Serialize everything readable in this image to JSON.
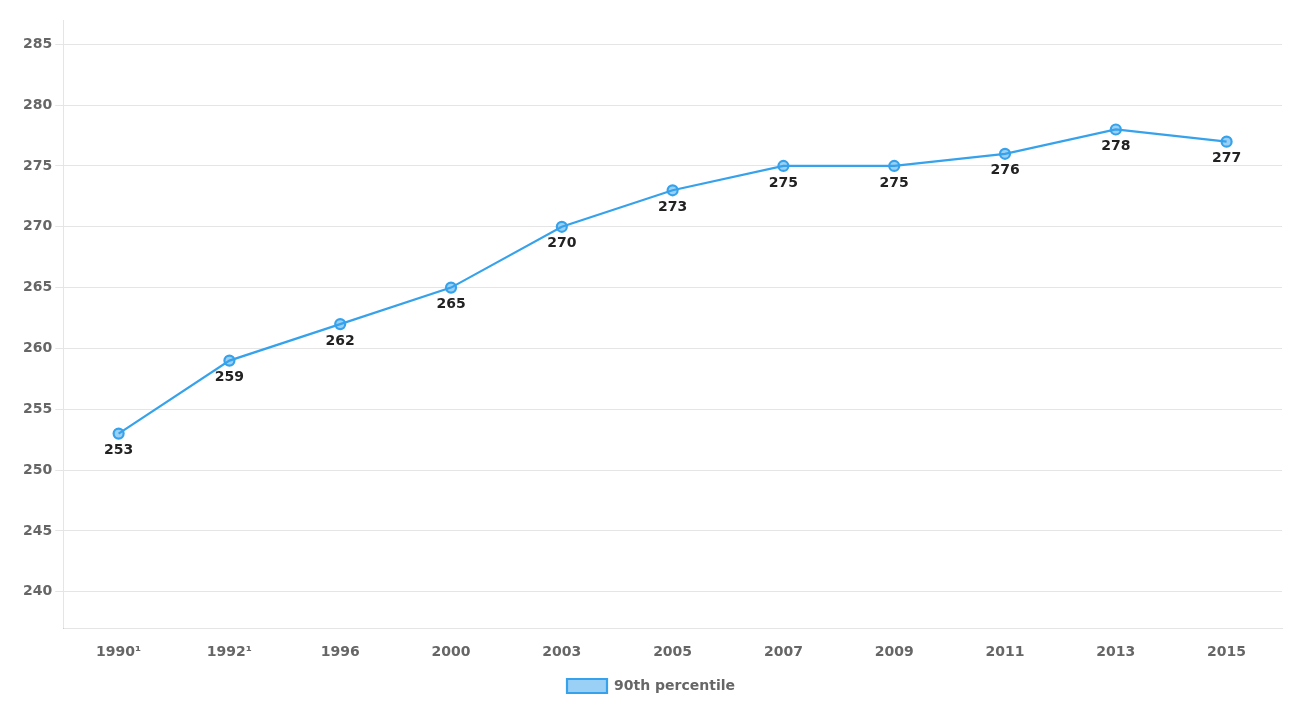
{
  "chart_data": {
    "type": "line",
    "categories": [
      "1990¹",
      "1992¹",
      "1996",
      "2000",
      "2003",
      "2005",
      "2007",
      "2009",
      "2011",
      "2013",
      "2015"
    ],
    "series": [
      {
        "name": "90th percentile",
        "values": [
          253,
          259,
          262,
          265,
          270,
          273,
          275,
          275,
          276,
          278,
          277
        ]
      }
    ],
    "ylim": [
      237,
      287
    ],
    "yticks": [
      240,
      245,
      250,
      255,
      260,
      265,
      270,
      275,
      280,
      285
    ],
    "grid": "y",
    "legend": "bottom",
    "marker": "circle",
    "data_labels": true
  }
}
